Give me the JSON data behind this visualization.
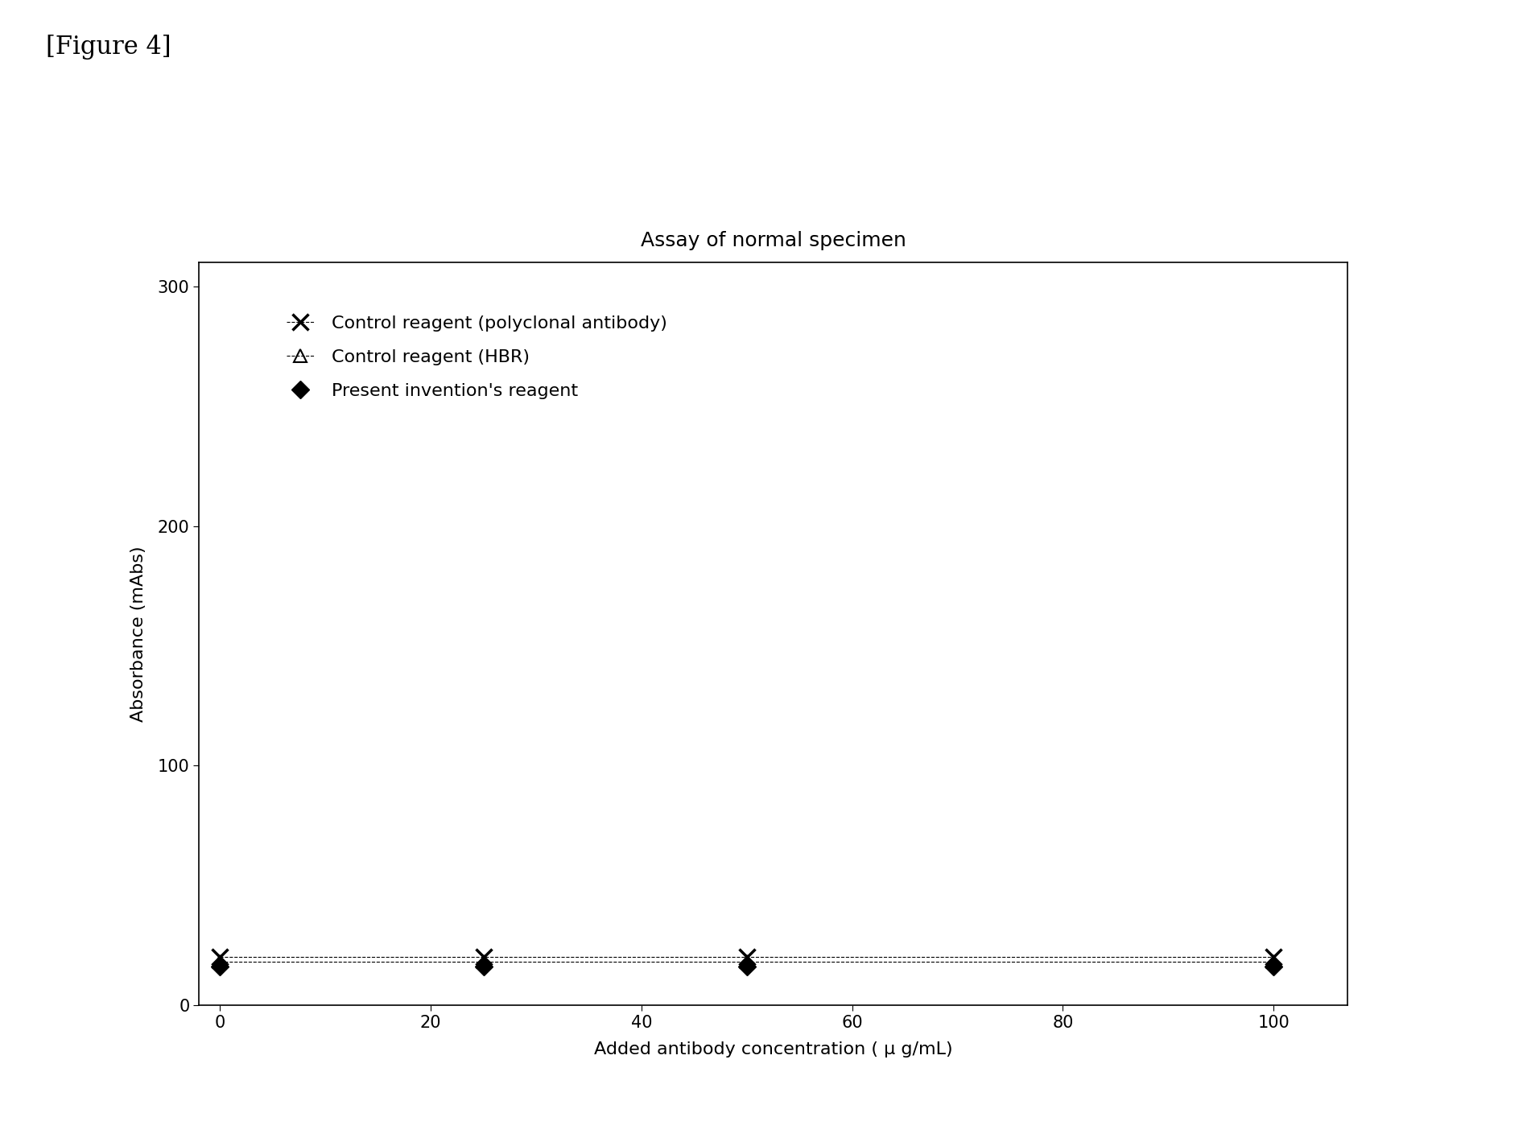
{
  "title": "Assay of normal specimen",
  "xlabel": "Added antibody concentration ( μ g/mL)",
  "ylabel": "Absorbance (mAbs)",
  "figure_label": "[Figure 4]",
  "xlim": [
    -2,
    107
  ],
  "ylim": [
    0,
    310
  ],
  "xticks": [
    0,
    20,
    40,
    60,
    80,
    100
  ],
  "yticks": [
    0,
    100,
    200,
    300
  ],
  "x_values": [
    0,
    25,
    50,
    100
  ],
  "series1_y": [
    20,
    20,
    20,
    20
  ],
  "series2_y": [
    18,
    18,
    18,
    18
  ],
  "series3_y": [
    16,
    16,
    16,
    16
  ],
  "series1_label": "Control reagent (polyclonal antibody)",
  "series2_label": "Control reagent (HBR)",
  "series3_label": "Present invention's reagent",
  "series1_color": "#000000",
  "series2_color": "#000000",
  "series3_color": "#000000",
  "bg_color": "#ffffff",
  "title_fontsize": 18,
  "label_fontsize": 16,
  "legend_fontsize": 16,
  "tick_fontsize": 15,
  "figure_label_fontsize": 22
}
